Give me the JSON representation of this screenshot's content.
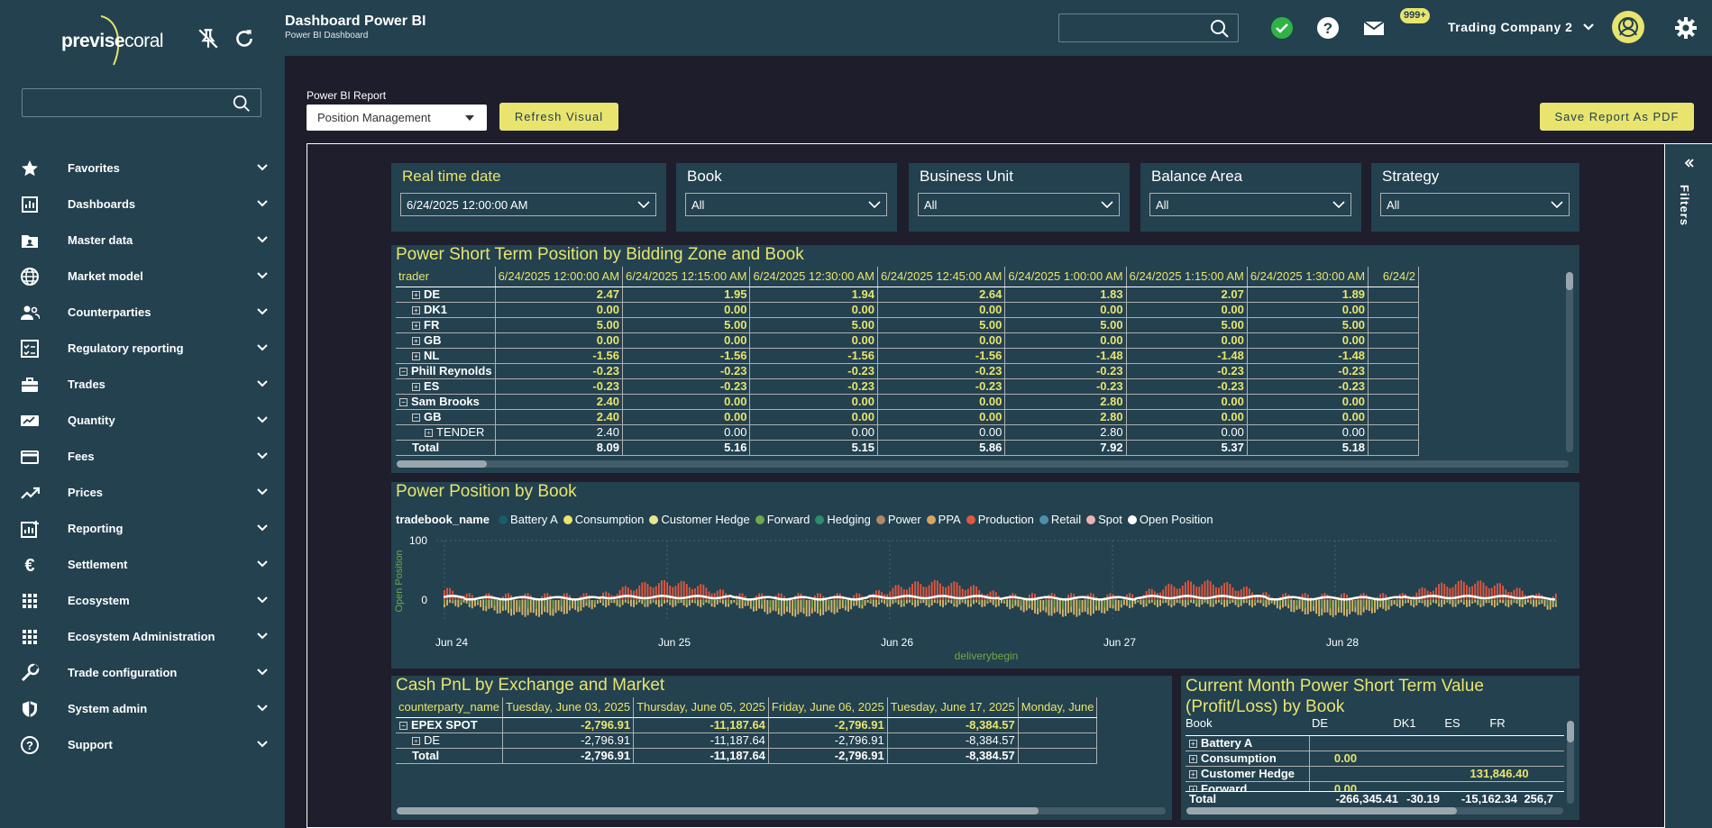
{
  "logo": {
    "text_a": "previse",
    "text_b": "coral"
  },
  "sidebar": {
    "search_placeholder": "",
    "items": [
      {
        "label": "Favorites",
        "icon": "star-icon"
      },
      {
        "label": "Dashboards",
        "icon": "dashboard-icon"
      },
      {
        "label": "Master data",
        "icon": "master-data-icon"
      },
      {
        "label": "Market model",
        "icon": "globe-icon"
      },
      {
        "label": "Counterparties",
        "icon": "people-icon"
      },
      {
        "label": "Regulatory reporting",
        "icon": "checklist-icon"
      },
      {
        "label": "Trades",
        "icon": "briefcase-icon"
      },
      {
        "label": "Quantity",
        "icon": "quantity-icon"
      },
      {
        "label": "Fees",
        "icon": "card-icon"
      },
      {
        "label": "Prices",
        "icon": "trend-icon"
      },
      {
        "label": "Reporting",
        "icon": "report-icon"
      },
      {
        "label": "Settlement",
        "icon": "euro-icon"
      },
      {
        "label": "Ecosystem",
        "icon": "grid-icon"
      },
      {
        "label": "Ecosystem Administration",
        "icon": "grid-icon"
      },
      {
        "label": "Trade configuration",
        "icon": "wrench-icon"
      },
      {
        "label": "System admin",
        "icon": "shield-icon"
      },
      {
        "label": "Support",
        "icon": "help-icon"
      }
    ]
  },
  "header": {
    "title": "Dashboard Power BI",
    "subtitle": "Power BI Dashboard",
    "badge": "999+",
    "company": "Trading Company 2"
  },
  "toolbar": {
    "report_label": "Power BI Report",
    "report_value": "Position Management",
    "refresh_label": "Refresh Visual",
    "save_label": "Save Report As PDF"
  },
  "slicers": [
    {
      "title": "Real time date",
      "value": "6/24/2025 12:00:00 AM"
    },
    {
      "title": "Book",
      "value": "All"
    },
    {
      "title": "Business Unit",
      "value": "All"
    },
    {
      "title": "Balance Area",
      "value": "All"
    },
    {
      "title": "Strategy",
      "value": "All"
    }
  ],
  "position_table": {
    "title": "Power Short Term Position by Bidding Zone and Book",
    "row_header": "trader",
    "columns": [
      "6/24/2025 12:00:00 AM",
      "6/24/2025 12:15:00 AM",
      "6/24/2025 12:30:00 AM",
      "6/24/2025 12:45:00 AM",
      "6/24/2025 1:00:00 AM",
      "6/24/2025 1:15:00 AM",
      "6/24/2025 1:30:00 AM",
      "6/24/2"
    ],
    "rows": [
      {
        "label": "DE",
        "exp": "⊞",
        "indent": 1,
        "style": "y",
        "values": [
          "2.47",
          "1.95",
          "1.94",
          "2.64",
          "1.83",
          "2.07",
          "1.89",
          ""
        ]
      },
      {
        "label": "DK1",
        "exp": "⊞",
        "indent": 1,
        "style": "y",
        "values": [
          "0.00",
          "0.00",
          "0.00",
          "0.00",
          "0.00",
          "0.00",
          "0.00",
          ""
        ]
      },
      {
        "label": "FR",
        "exp": "⊞",
        "indent": 1,
        "style": "y",
        "values": [
          "5.00",
          "5.00",
          "5.00",
          "5.00",
          "5.00",
          "5.00",
          "5.00",
          ""
        ]
      },
      {
        "label": "GB",
        "exp": "⊞",
        "indent": 1,
        "style": "y",
        "values": [
          "0.00",
          "0.00",
          "0.00",
          "0.00",
          "0.00",
          "0.00",
          "0.00",
          ""
        ]
      },
      {
        "label": "NL",
        "exp": "⊞",
        "indent": 1,
        "style": "y",
        "values": [
          "-1.56",
          "-1.56",
          "-1.56",
          "-1.56",
          "-1.48",
          "-1.48",
          "-1.48",
          ""
        ]
      },
      {
        "label": "Phill Reynolds",
        "exp": "⊟",
        "indent": 0,
        "style": "y",
        "values": [
          "-0.23",
          "-0.23",
          "-0.23",
          "-0.23",
          "-0.23",
          "-0.23",
          "-0.23",
          ""
        ]
      },
      {
        "label": "ES",
        "exp": "⊞",
        "indent": 1,
        "style": "y",
        "values": [
          "-0.23",
          "-0.23",
          "-0.23",
          "-0.23",
          "-0.23",
          "-0.23",
          "-0.23",
          ""
        ]
      },
      {
        "label": "Sam Brooks",
        "exp": "⊟",
        "indent": 0,
        "style": "y",
        "values": [
          "2.40",
          "0.00",
          "0.00",
          "0.00",
          "2.80",
          "0.00",
          "0.00",
          ""
        ]
      },
      {
        "label": "GB",
        "exp": "⊟",
        "indent": 1,
        "style": "y",
        "values": [
          "2.40",
          "0.00",
          "0.00",
          "0.00",
          "2.80",
          "0.00",
          "0.00",
          ""
        ]
      },
      {
        "label": "TENDER",
        "exp": "⊞",
        "indent": 2,
        "style": "n",
        "values": [
          "2.40",
          "0.00",
          "0.00",
          "0.00",
          "2.80",
          "0.00",
          "0.00",
          ""
        ]
      },
      {
        "label": "Total",
        "exp": "",
        "indent": 1,
        "style": "w",
        "values": [
          "8.09",
          "5.16",
          "5.15",
          "5.86",
          "7.92",
          "5.37",
          "5.18",
          ""
        ]
      }
    ]
  },
  "chart_data": {
    "type": "bar",
    "title": "Power Position by Book",
    "legend_title": "tradebook_name",
    "series": [
      {
        "name": "Battery A",
        "color": "#1b5c6b"
      },
      {
        "name": "Consumption",
        "color": "#e8e46e"
      },
      {
        "name": "Customer Hedge",
        "color": "#e9e58d"
      },
      {
        "name": "Forward",
        "color": "#6fa84a"
      },
      {
        "name": "Hedging",
        "color": "#2e8b6e"
      },
      {
        "name": "Power",
        "color": "#b08968"
      },
      {
        "name": "PPA",
        "color": "#d9a55e"
      },
      {
        "name": "Production",
        "color": "#e0583e"
      },
      {
        "name": "Retail",
        "color": "#4a90a8"
      },
      {
        "name": "Spot",
        "color": "#e8b4b8"
      },
      {
        "name": "Open Position",
        "color": "#ffffff"
      }
    ],
    "ylabel": "Open Position",
    "xlabel": "deliverybegin",
    "yticks": [
      "100",
      "0"
    ],
    "xticks": [
      "Jun 24",
      "Jun 25",
      "Jun 26",
      "Jun 27",
      "Jun 28"
    ],
    "ylim": [
      -30,
      100
    ]
  },
  "cash_table": {
    "title": "Cash PnL by Exchange and Market",
    "row_header": "counterparty_name",
    "columns": [
      "Tuesday, June 03, 2025",
      "Thursday, June 05, 2025",
      "Friday, June 06, 2025",
      "Tuesday, June 17, 2025",
      "Monday, June"
    ],
    "rows": [
      {
        "label": "EPEX SPOT",
        "exp": "⊟",
        "indent": 0,
        "style": "y",
        "values": [
          "-2,796.91",
          "-11,187.64",
          "-2,796.91",
          "-8,384.57",
          ""
        ]
      },
      {
        "label": "DE",
        "exp": "⊞",
        "indent": 1,
        "style": "n",
        "values": [
          "-2,796.91",
          "-11,187.64",
          "-2,796.91",
          "-8,384.57",
          ""
        ]
      },
      {
        "label": "Total",
        "exp": "",
        "indent": 1,
        "style": "w",
        "values": [
          "-2,796.91",
          "-11,187.64",
          "-2,796.91",
          "-8,384.57",
          ""
        ]
      }
    ]
  },
  "value_table": {
    "title": "Current Month Power Short Term Value (Profit/Loss) by Book",
    "row_header": "Book",
    "columns": [
      "DE",
      "DK1",
      "ES",
      "FR"
    ],
    "rows": [
      {
        "label": "Battery A",
        "values": [
          "",
          "",
          "",
          ""
        ]
      },
      {
        "label": "Consumption",
        "values": [
          "0.00",
          "",
          "",
          ""
        ]
      },
      {
        "label": "Customer Hedge",
        "values": [
          "",
          "",
          "131,846.40",
          ""
        ]
      },
      {
        "label": "Forward",
        "values": [
          "0.00",
          "",
          "",
          ""
        ]
      }
    ],
    "total": {
      "label": "Total",
      "values": [
        "-266,345.41",
        "-30.19",
        "-15,162.34",
        "256,7"
      ]
    }
  },
  "filters_label": "Filters"
}
